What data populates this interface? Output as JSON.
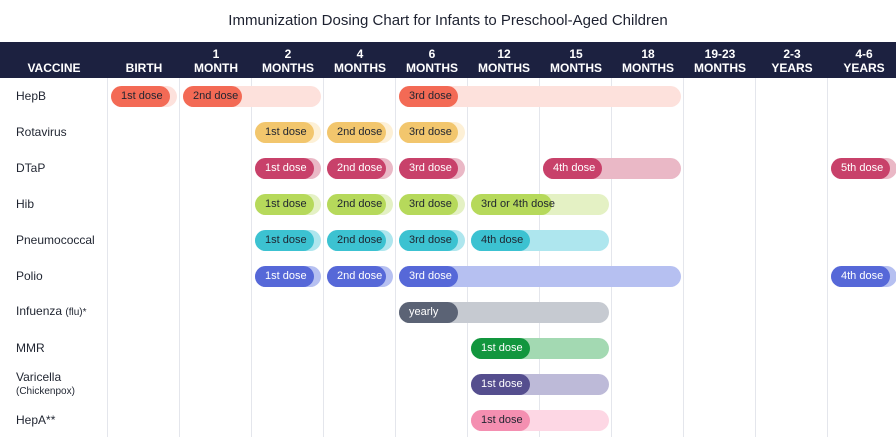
{
  "chart_data": {
    "type": "table",
    "title": "Immunization Dosing Chart for Infants to Preschool-Aged Children",
    "vaccine_header": "VACCINE",
    "columns": [
      [
        "BIRTH"
      ],
      [
        "1",
        "MONTH"
      ],
      [
        "2",
        "MONTHS"
      ],
      [
        "4",
        "MONTHS"
      ],
      [
        "6",
        "MONTHS"
      ],
      [
        "12",
        "MONTHS"
      ],
      [
        "15",
        "MONTHS"
      ],
      [
        "18",
        "MONTHS"
      ],
      [
        "19-23",
        "MONTHS"
      ],
      [
        "2-3",
        "YEARS"
      ],
      [
        "4-6",
        "YEARS"
      ]
    ],
    "rows": [
      {
        "vaccine": "HepB",
        "color": "#f36a55",
        "range_color": "#fde1dc",
        "text_color": "#1f2430",
        "ranges": [
          [
            1,
            2
          ],
          [
            4,
            7
          ]
        ],
        "doses": [
          {
            "label": "1st dose",
            "col": 0,
            "span": 1
          },
          {
            "label": "2nd dose",
            "col": 1,
            "span": 1
          },
          {
            "label": "3rd dose",
            "col": 4,
            "span": 1
          }
        ]
      },
      {
        "vaccine": "Rotavirus",
        "color": "#f2c66d",
        "range_color": "#fdf0d6",
        "text_color": "#1f2430",
        "ranges": [],
        "doses": [
          {
            "label": "1st dose",
            "col": 2,
            "span": 1
          },
          {
            "label": "2nd dose",
            "col": 3,
            "span": 1
          },
          {
            "label": "3rd dose",
            "col": 4,
            "span": 1
          }
        ]
      },
      {
        "vaccine": "DTaP",
        "color": "#c8416a",
        "range_color": "#eab8c6",
        "text_color": "#ffffff",
        "ranges": [
          [
            6,
            7
          ]
        ],
        "doses": [
          {
            "label": "1st dose",
            "col": 2,
            "span": 1
          },
          {
            "label": "2nd dose",
            "col": 3,
            "span": 1
          },
          {
            "label": "3rd dose",
            "col": 4,
            "span": 1
          },
          {
            "label": "4th dose",
            "col": 6,
            "span": 1
          },
          {
            "label": "5th dose",
            "col": 10,
            "span": 1
          }
        ]
      },
      {
        "vaccine": "Hib",
        "color": "#b6d95b",
        "range_color": "#e4f1c4",
        "text_color": "#1f2430",
        "ranges": [
          [
            5,
            6
          ]
        ],
        "doses": [
          {
            "label": "1st dose",
            "col": 2,
            "span": 1
          },
          {
            "label": "2nd dose",
            "col": 3,
            "span": 1
          },
          {
            "label": "3rd dose",
            "col": 4,
            "span": 1
          },
          {
            "label": "3rd or 4th dose",
            "col": 5,
            "span": 1.3
          }
        ]
      },
      {
        "vaccine": "Pneumococcal",
        "color": "#3cc2d1",
        "range_color": "#aee6ee",
        "text_color": "#1f2430",
        "ranges": [
          [
            5,
            6
          ]
        ],
        "doses": [
          {
            "label": "1st dose",
            "col": 2,
            "span": 1
          },
          {
            "label": "2nd dose",
            "col": 3,
            "span": 1
          },
          {
            "label": "3rd dose",
            "col": 4,
            "span": 1
          },
          {
            "label": "4th dose",
            "col": 5,
            "span": 1
          }
        ]
      },
      {
        "vaccine": "Polio",
        "color": "#5668d8",
        "range_color": "#b6c0f1",
        "text_color": "#ffffff",
        "ranges": [
          [
            4,
            7
          ]
        ],
        "doses": [
          {
            "label": "1st dose",
            "col": 2,
            "span": 1
          },
          {
            "label": "2nd dose",
            "col": 3,
            "span": 1
          },
          {
            "label": "3rd dose",
            "col": 4,
            "span": 1
          },
          {
            "label": "4th dose",
            "col": 10,
            "span": 1
          }
        ]
      },
      {
        "vaccine": "Infuenza",
        "vaccine_sub": "(flu)*",
        "color": "#5b6375",
        "range_color": "#c6cad1",
        "text_color": "#ffffff",
        "ranges": [
          [
            4,
            6
          ]
        ],
        "doses": [
          {
            "label": "yearly",
            "col": 4,
            "span": 1
          }
        ]
      },
      {
        "vaccine": "MMR",
        "color": "#12963e",
        "range_color": "#a3d9b2",
        "text_color": "#ffffff",
        "ranges": [
          [
            5,
            6
          ]
        ],
        "doses": [
          {
            "label": "1st dose",
            "col": 5,
            "span": 1
          }
        ]
      },
      {
        "vaccine": "Varicella",
        "vaccine_sub": "(Chickenpox)",
        "color": "#554e8e",
        "range_color": "#bdbad8",
        "text_color": "#ffffff",
        "ranges": [
          [
            5,
            6
          ]
        ],
        "doses": [
          {
            "label": "1st dose",
            "col": 5,
            "span": 1
          }
        ]
      },
      {
        "vaccine": "HepA**",
        "color": "#f48fb1",
        "range_color": "#fdd7e4",
        "text_color": "#1f2430",
        "ranges": [
          [
            5,
            6
          ]
        ],
        "doses": [
          {
            "label": "1st dose",
            "col": 5,
            "span": 1
          }
        ]
      }
    ]
  }
}
